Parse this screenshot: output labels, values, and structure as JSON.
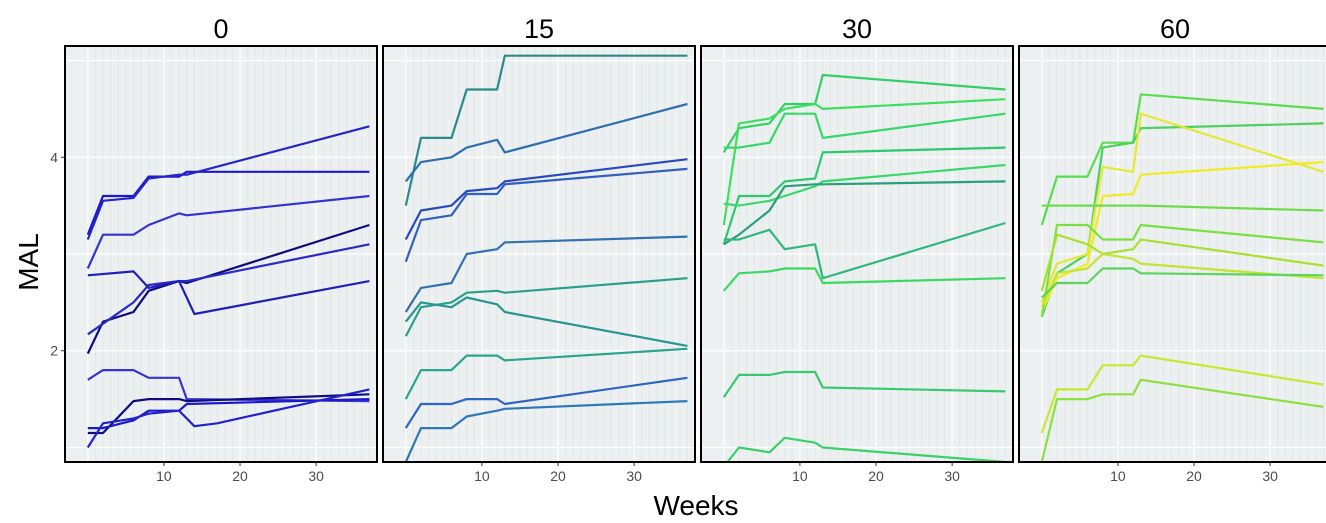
{
  "chart_data": {
    "type": "line",
    "xlabel": "Weeks",
    "ylabel": "MAL",
    "xlim": [
      -3,
      38
    ],
    "ylim": [
      0.85,
      5.15
    ],
    "x_ticks": [
      10,
      20,
      30
    ],
    "y_ticks": [
      2,
      4
    ],
    "grid": true,
    "facets": [
      {
        "label": "0",
        "series": [
          {
            "color": "#1a1acc",
            "x": [
              0,
              2,
              6,
              8,
              12,
              13,
              37
            ],
            "y": [
              3.2,
              3.6,
              3.6,
              3.8,
              3.8,
              3.85,
              3.85
            ]
          },
          {
            "color": "#2626c8",
            "x": [
              0,
              2,
              6,
              8,
              12,
              13,
              37
            ],
            "y": [
              3.15,
              3.55,
              3.58,
              3.78,
              3.82,
              3.82,
              4.32
            ]
          },
          {
            "color": "#3333d0",
            "x": [
              0,
              2,
              6,
              8,
              12,
              13,
              37
            ],
            "y": [
              2.85,
              3.2,
              3.2,
              3.3,
              3.42,
              3.4,
              3.6
            ]
          },
          {
            "color": "#0d0d80",
            "x": [
              0,
              2,
              6,
              8,
              12,
              13,
              37
            ],
            "y": [
              1.97,
              2.3,
              2.4,
              2.62,
              2.72,
              2.7,
              3.3
            ]
          },
          {
            "color": "#2a2ac8",
            "x": [
              0,
              2,
              6,
              8,
              12,
              13,
              37
            ],
            "y": [
              2.17,
              2.28,
              2.5,
              2.68,
              2.72,
              2.72,
              3.1
            ]
          },
          {
            "color": "#2020b8",
            "x": [
              0,
              6,
              8,
              12,
              14,
              37
            ],
            "y": [
              2.78,
              2.82,
              2.65,
              2.72,
              2.38,
              2.72
            ]
          },
          {
            "color": "#3535d5",
            "x": [
              0,
              2,
              6,
              8,
              12,
              13,
              37
            ],
            "y": [
              1.7,
              1.8,
              1.8,
              1.72,
              1.72,
              1.5,
              1.48
            ]
          },
          {
            "color": "#0e0e80",
            "x": [
              0,
              2,
              6,
              8,
              12,
              13,
              37
            ],
            "y": [
              1.15,
              1.15,
              1.48,
              1.5,
              1.5,
              1.48,
              1.55
            ]
          },
          {
            "color": "#1a1ac8",
            "x": [
              0,
              2,
              6,
              8,
              12,
              13,
              37
            ],
            "y": [
              1.2,
              1.2,
              1.28,
              1.38,
              1.38,
              1.45,
              1.5
            ]
          },
          {
            "color": "#2222d0",
            "x": [
              0,
              2,
              6,
              8,
              12,
              14,
              17,
              37
            ],
            "y": [
              1.0,
              1.25,
              1.3,
              1.35,
              1.38,
              1.22,
              1.25,
              1.6
            ]
          }
        ]
      },
      {
        "label": "15",
        "series": [
          {
            "color": "#2b8a8a",
            "x": [
              0,
              2,
              6,
              8,
              12,
              13,
              37
            ],
            "y": [
              3.5,
              4.2,
              4.2,
              4.7,
              4.7,
              5.05,
              5.05
            ]
          },
          {
            "color": "#2f6db5",
            "x": [
              0,
              2,
              6,
              8,
              12,
              13,
              37
            ],
            "y": [
              3.75,
              3.95,
              4.0,
              4.1,
              4.18,
              4.05,
              4.55
            ]
          },
          {
            "color": "#2a48c0",
            "x": [
              0,
              2,
              6,
              8,
              12,
              13,
              37
            ],
            "y": [
              3.15,
              3.45,
              3.5,
              3.65,
              3.68,
              3.75,
              3.98
            ]
          },
          {
            "color": "#3060c0",
            "x": [
              0,
              2,
              6,
              8,
              12,
              13,
              37
            ],
            "y": [
              2.92,
              3.35,
              3.4,
              3.62,
              3.62,
              3.72,
              3.88
            ]
          },
          {
            "color": "#3470b0",
            "x": [
              0,
              2,
              6,
              8,
              12,
              13,
              37
            ],
            "y": [
              2.4,
              2.65,
              2.7,
              3.0,
              3.05,
              3.12,
              3.18
            ]
          },
          {
            "color": "#2aa08a",
            "x": [
              0,
              2,
              6,
              8,
              12,
              13,
              37
            ],
            "y": [
              2.15,
              2.45,
              2.5,
              2.6,
              2.62,
              2.6,
              2.75
            ]
          },
          {
            "color": "#2a9490",
            "x": [
              0,
              2,
              6,
              8,
              12,
              13,
              37
            ],
            "y": [
              2.3,
              2.5,
              2.45,
              2.55,
              2.48,
              2.4,
              2.05
            ]
          },
          {
            "color": "#2aa48c",
            "x": [
              0,
              2,
              6,
              8,
              12,
              13,
              37
            ],
            "y": [
              1.5,
              1.8,
              1.8,
              1.95,
              1.95,
              1.9,
              2.02
            ]
          },
          {
            "color": "#2f64c0",
            "x": [
              0,
              2,
              6,
              8,
              12,
              13,
              37
            ],
            "y": [
              1.2,
              1.45,
              1.45,
              1.5,
              1.5,
              1.45,
              1.72
            ]
          },
          {
            "color": "#2e78b8",
            "x": [
              0,
              2,
              6,
              8,
              12,
              13,
              37
            ],
            "y": [
              0.85,
              1.2,
              1.2,
              1.32,
              1.38,
              1.4,
              1.48
            ]
          }
        ]
      },
      {
        "label": "30",
        "series": [
          {
            "color": "#33d066",
            "x": [
              0,
              2,
              6,
              8,
              12,
              13,
              37
            ],
            "y": [
              4.05,
              4.3,
              4.35,
              4.55,
              4.55,
              4.85,
              4.7
            ]
          },
          {
            "color": "#3ce060",
            "x": [
              0,
              2,
              6,
              8,
              12,
              13,
              37
            ],
            "y": [
              3.3,
              4.35,
              4.4,
              4.5,
              4.55,
              4.5,
              4.6
            ]
          },
          {
            "color": "#36d86a",
            "x": [
              0,
              2,
              6,
              8,
              12,
              13,
              37
            ],
            "y": [
              4.1,
              4.1,
              4.15,
              4.45,
              4.45,
              4.2,
              4.45
            ]
          },
          {
            "color": "#2fc870",
            "x": [
              0,
              2,
              6,
              8,
              12,
              13,
              37
            ],
            "y": [
              3.1,
              3.6,
              3.6,
              3.75,
              3.78,
              4.05,
              4.1
            ]
          },
          {
            "color": "#3ad86a",
            "x": [
              0,
              2,
              6,
              8,
              12,
              13,
              37
            ],
            "y": [
              3.52,
              3.5,
              3.55,
              3.6,
              3.7,
              3.75,
              3.92
            ]
          },
          {
            "color": "#28a07a",
            "x": [
              0,
              2,
              6,
              8,
              12,
              13,
              37
            ],
            "y": [
              3.1,
              3.2,
              3.45,
              3.7,
              3.72,
              3.72,
              3.75
            ]
          },
          {
            "color": "#30b87a",
            "x": [
              0,
              2,
              6,
              8,
              12,
              13,
              37
            ],
            "y": [
              3.15,
              3.15,
              3.25,
              3.05,
              3.1,
              2.75,
              3.32
            ]
          },
          {
            "color": "#3cd860",
            "x": [
              0,
              2,
              6,
              8,
              12,
              13,
              37
            ],
            "y": [
              2.62,
              2.8,
              2.82,
              2.85,
              2.85,
              2.7,
              2.75
            ]
          },
          {
            "color": "#38c870",
            "x": [
              0,
              2,
              6,
              8,
              12,
              13,
              37
            ],
            "y": [
              1.52,
              1.75,
              1.75,
              1.78,
              1.78,
              1.62,
              1.58
            ]
          },
          {
            "color": "#3ad06a",
            "x": [
              0,
              2,
              6,
              8,
              12,
              13,
              37
            ],
            "y": [
              0.8,
              1.0,
              0.95,
              1.1,
              1.05,
              1.0,
              0.85
            ]
          }
        ]
      },
      {
        "label": "60",
        "series": [
          {
            "color": "#5adc50",
            "x": [
              0,
              2,
              6,
              8,
              12,
              13,
              37
            ],
            "y": [
              3.3,
              3.8,
              3.8,
              4.15,
              4.15,
              4.65,
              4.5
            ]
          },
          {
            "color": "#4ed060",
            "x": [
              0,
              2,
              6,
              8,
              12,
              13,
              37
            ],
            "y": [
              2.35,
              2.8,
              3.0,
              4.1,
              4.15,
              4.3,
              4.35
            ]
          },
          {
            "color": "#e5e832",
            "x": [
              0,
              2,
              6,
              8,
              12,
              13,
              37
            ],
            "y": [
              2.5,
              2.9,
              3.0,
              3.9,
              3.85,
              4.45,
              3.85
            ]
          },
          {
            "color": "#f0ec20",
            "x": [
              0,
              2,
              6,
              8,
              12,
              13,
              37
            ],
            "y": [
              2.4,
              2.75,
              2.9,
              3.6,
              3.62,
              3.82,
              3.95
            ]
          },
          {
            "color": "#6edc4a",
            "x": [
              0,
              2,
              6,
              8,
              12,
              13,
              37
            ],
            "y": [
              3.5,
              3.5,
              3.5,
              3.5,
              3.5,
              3.5,
              3.45
            ]
          },
          {
            "color": "#7ae040",
            "x": [
              0,
              2,
              6,
              8,
              12,
              13,
              37
            ],
            "y": [
              2.35,
              3.3,
              3.3,
              3.15,
              3.15,
              3.3,
              3.12
            ]
          },
          {
            "color": "#a8e030",
            "x": [
              0,
              2,
              6,
              8,
              12,
              13,
              37
            ],
            "y": [
              2.62,
              3.2,
              3.1,
              3.0,
              3.05,
              3.15,
              2.88
            ]
          },
          {
            "color": "#c2e432",
            "x": [
              0,
              2,
              6,
              8,
              12,
              13,
              37
            ],
            "y": [
              2.45,
              2.8,
              2.85,
              3.0,
              2.95,
              2.9,
              2.75
            ]
          },
          {
            "color": "#5ad45a",
            "x": [
              0,
              2,
              6,
              8,
              12,
              13,
              37
            ],
            "y": [
              2.55,
              2.7,
              2.7,
              2.85,
              2.85,
              2.8,
              2.78
            ]
          },
          {
            "color": "#c8e830",
            "x": [
              0,
              2,
              6,
              8,
              12,
              13,
              37
            ],
            "y": [
              1.15,
              1.6,
              1.6,
              1.85,
              1.85,
              1.95,
              1.65
            ]
          },
          {
            "color": "#8ee040",
            "x": [
              0,
              2,
              6,
              8,
              12,
              13,
              37
            ],
            "y": [
              0.85,
              1.5,
              1.5,
              1.55,
              1.55,
              1.7,
              1.42
            ]
          }
        ]
      }
    ]
  }
}
